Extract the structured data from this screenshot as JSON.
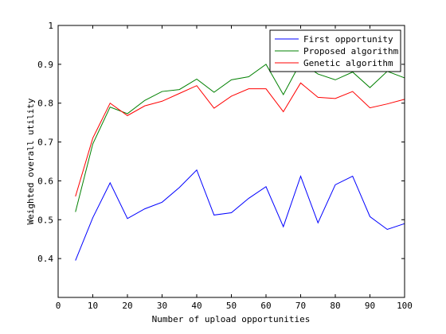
{
  "chart_data": {
    "type": "line",
    "xlabel": "Number of upload opportunities",
    "ylabel": "Weighted overall utility",
    "xlim": [
      0,
      100
    ],
    "ylim": [
      0.3,
      1.0
    ],
    "xticks": [
      0,
      10,
      20,
      30,
      40,
      50,
      60,
      70,
      80,
      90,
      100
    ],
    "yticks": [
      0.4,
      0.5,
      0.6,
      0.7,
      0.8,
      0.9,
      1.0
    ],
    "xtick_labels": [
      "0",
      "10",
      "20",
      "30",
      "40",
      "50",
      "60",
      "70",
      "80",
      "90",
      "100"
    ],
    "ytick_labels": [
      "0.4",
      "0.5",
      "0.6",
      "0.7",
      "0.8",
      "0.9",
      "1"
    ],
    "grid": false,
    "legend_position": "top-right",
    "x": [
      5,
      10,
      15,
      20,
      25,
      30,
      35,
      40,
      45,
      50,
      55,
      60,
      65,
      70,
      75,
      80,
      85,
      90,
      95,
      100
    ],
    "series": [
      {
        "name": "First opportunity",
        "color": "#0000ff",
        "values": [
          0.395,
          0.505,
          0.595,
          0.503,
          0.528,
          0.545,
          0.583,
          0.628,
          0.512,
          0.518,
          0.555,
          0.585,
          0.482,
          0.612,
          0.492,
          0.59,
          0.612,
          0.508,
          0.475,
          0.49
        ]
      },
      {
        "name": "Proposed algorithm",
        "color": "#008000",
        "values": [
          0.52,
          0.695,
          0.79,
          0.773,
          0.807,
          0.83,
          0.835,
          0.862,
          0.828,
          0.86,
          0.868,
          0.9,
          0.822,
          0.905,
          0.875,
          0.86,
          0.88,
          0.84,
          0.882,
          0.865
        ]
      },
      {
        "name": "Genetic algorithm",
        "color": "#ff0000",
        "values": [
          0.56,
          0.71,
          0.8,
          0.768,
          0.793,
          0.805,
          0.825,
          0.845,
          0.787,
          0.818,
          0.837,
          0.837,
          0.778,
          0.852,
          0.815,
          0.812,
          0.83,
          0.788,
          0.798,
          0.81
        ]
      }
    ]
  }
}
